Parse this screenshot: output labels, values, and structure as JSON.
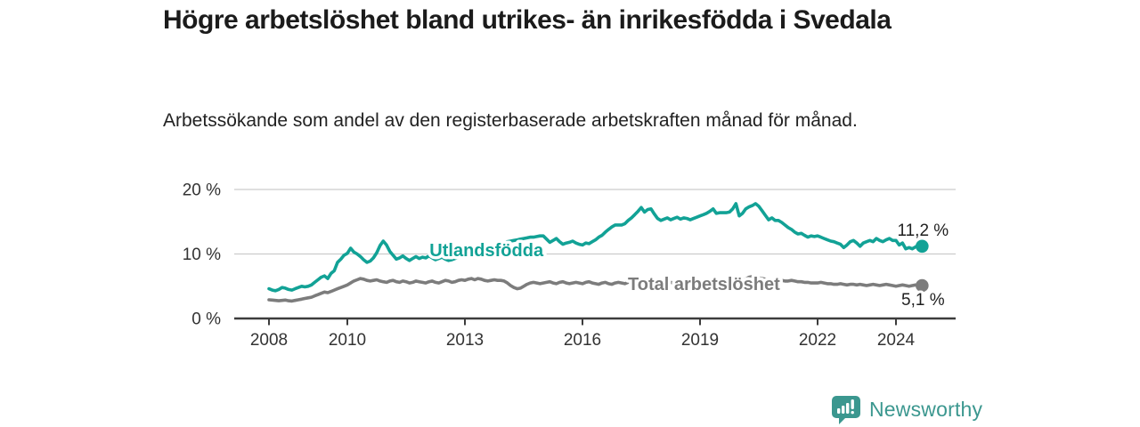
{
  "title": "Högre arbetslöshet bland utrikes- än inrikesfödda i Svedala",
  "subtitle": "Arbetssökande som andel av den registerbaserade arbetskraften månad för månad.",
  "branding": {
    "name": "Newsworthy",
    "icon": "newsworthy-chart-bubble-icon",
    "color": "#3b978f"
  },
  "chart_data": {
    "type": "line",
    "title": "Högre arbetslöshet bland utrikes- än inrikesfödda i Svedala",
    "xlabel": "",
    "ylabel": "Arbetssökande som andel av den registerbaserade arbetskraften",
    "x_unit": "month",
    "x_start": "2008-01",
    "x_end": "2024-09",
    "ylim": [
      0,
      21
    ],
    "grid": "horizontal",
    "legend_position": "inline",
    "y_axis_ticks": [
      {
        "label": "0 %",
        "value": 0
      },
      {
        "label": "10 %",
        "value": 10
      },
      {
        "label": "20 %",
        "value": 20
      }
    ],
    "x_axis_ticks": [
      {
        "label": "2008",
        "year": 2008
      },
      {
        "label": "2010",
        "year": 2010
      },
      {
        "label": "2013",
        "year": 2013
      },
      {
        "label": "2016",
        "year": 2016
      },
      {
        "label": "2019",
        "year": 2019
      },
      {
        "label": "2022",
        "year": 2022
      },
      {
        "label": "2024",
        "year": 2024
      }
    ],
    "series": [
      {
        "id": "total-arbetsloshet",
        "name": "Total arbetslöshet",
        "color": "#7c7c7c",
        "end_label": "5,1 %",
        "end_value": 5.1,
        "label_pos": {
          "year": 2019.1,
          "value": 5.4
        },
        "values": [
          2.9,
          2.85,
          2.8,
          2.75,
          2.8,
          2.85,
          2.75,
          2.7,
          2.8,
          2.9,
          3.0,
          3.1,
          3.2,
          3.3,
          3.5,
          3.7,
          3.9,
          4.1,
          4.0,
          4.2,
          4.4,
          4.6,
          4.8,
          5.0,
          5.2,
          5.5,
          5.8,
          6.0,
          6.2,
          6.1,
          5.9,
          5.8,
          5.9,
          6.0,
          5.8,
          5.7,
          5.6,
          5.8,
          5.9,
          5.7,
          5.6,
          5.8,
          5.7,
          5.5,
          5.6,
          5.8,
          5.7,
          5.6,
          5.5,
          5.7,
          5.8,
          5.6,
          5.5,
          5.7,
          5.9,
          5.8,
          5.6,
          5.7,
          5.9,
          6.0,
          5.9,
          6.1,
          6.2,
          6.0,
          6.2,
          6.1,
          5.9,
          5.8,
          5.9,
          6.0,
          5.9,
          5.9,
          5.8,
          5.5,
          5.1,
          4.8,
          4.6,
          4.7,
          5.0,
          5.3,
          5.5,
          5.6,
          5.5,
          5.4,
          5.5,
          5.6,
          5.7,
          5.5,
          5.4,
          5.6,
          5.7,
          5.5,
          5.4,
          5.5,
          5.6,
          5.5,
          5.4,
          5.6,
          5.7,
          5.5,
          5.4,
          5.3,
          5.5,
          5.6,
          5.4,
          5.3,
          5.5,
          5.6,
          5.5,
          5.4,
          5.6,
          5.7,
          5.5,
          5.4,
          5.5,
          5.6,
          5.5,
          5.4,
          5.5,
          5.6,
          5.5,
          5.6,
          5.7,
          5.6,
          5.5,
          5.6,
          5.7,
          5.6,
          5.5,
          5.6,
          5.7,
          5.6,
          5.6,
          5.7,
          5.8,
          5.7,
          5.6,
          5.7,
          5.8,
          5.7,
          5.6,
          5.7,
          5.8,
          5.8,
          5.8,
          5.9,
          6.1,
          6.4,
          6.5,
          6.4,
          6.3,
          6.2,
          6.1,
          6.0,
          6.0,
          5.9,
          5.9,
          5.9,
          5.8,
          5.8,
          5.9,
          5.8,
          5.7,
          5.7,
          5.6,
          5.6,
          5.5,
          5.5,
          5.5,
          5.6,
          5.5,
          5.4,
          5.4,
          5.3,
          5.3,
          5.4,
          5.3,
          5.2,
          5.3,
          5.3,
          5.2,
          5.3,
          5.2,
          5.1,
          5.2,
          5.3,
          5.2,
          5.1,
          5.2,
          5.3,
          5.2,
          5.1,
          5.0,
          5.1,
          5.2,
          5.1,
          5.0,
          5.1,
          5.2,
          5.2,
          5.1
        ]
      },
      {
        "id": "utlandsfodda",
        "name": "Utlandsfödda",
        "color": "#12a296",
        "end_label": "11,2 %",
        "end_value": 11.2,
        "label_pos": {
          "year": 2013.55,
          "value": 10.6
        },
        "values": [
          4.6,
          4.4,
          4.3,
          4.5,
          4.8,
          4.7,
          4.5,
          4.4,
          4.6,
          4.8,
          5.0,
          4.9,
          5.0,
          5.2,
          5.6,
          6.0,
          6.4,
          6.6,
          6.2,
          7.0,
          7.4,
          8.7,
          9.2,
          9.8,
          10.1,
          10.9,
          10.3,
          10.0,
          9.6,
          9.1,
          8.7,
          8.9,
          9.4,
          10.2,
          11.3,
          12.0,
          11.4,
          10.4,
          9.8,
          9.2,
          9.4,
          9.7,
          9.3,
          9.0,
          9.3,
          9.6,
          9.3,
          9.5,
          9.4,
          9.7,
          9.4,
          9.1,
          9.3,
          9.5,
          9.2,
          9.0,
          9.1,
          9.3,
          9.5,
          9.7,
          9.9,
          10.1,
          10.3,
          10.4,
          10.6,
          10.7,
          10.9,
          11.0,
          11.2,
          11.3,
          11.5,
          11.6,
          11.7,
          11.9,
          12.0,
          12.1,
          12.2,
          12.3,
          12.4,
          12.5,
          12.6,
          12.6,
          12.7,
          12.8,
          12.8,
          12.3,
          11.8,
          12.1,
          12.4,
          11.9,
          11.5,
          11.7,
          11.8,
          12.0,
          11.7,
          11.5,
          11.4,
          11.7,
          11.6,
          11.9,
          12.2,
          12.6,
          12.9,
          13.4,
          13.8,
          14.2,
          14.5,
          14.5,
          14.5,
          14.7,
          15.2,
          15.6,
          16.1,
          16.6,
          17.2,
          16.5,
          16.9,
          17.0,
          16.2,
          15.5,
          15.2,
          15.4,
          15.6,
          15.3,
          15.5,
          15.7,
          15.4,
          15.6,
          15.5,
          15.3,
          15.5,
          15.7,
          15.9,
          16.1,
          16.3,
          16.6,
          17.0,
          16.3,
          16.4,
          16.4,
          16.4,
          16.5,
          17.0,
          17.8,
          15.9,
          16.3,
          17.0,
          17.3,
          17.5,
          17.8,
          17.4,
          16.7,
          16.0,
          15.3,
          15.6,
          15.2,
          15.2,
          14.9,
          14.5,
          14.1,
          13.8,
          13.4,
          13.1,
          13.2,
          12.9,
          12.6,
          12.8,
          12.7,
          12.8,
          12.6,
          12.4,
          12.2,
          12.0,
          11.9,
          11.7,
          11.5,
          11.0,
          11.4,
          11.9,
          12.1,
          11.7,
          11.2,
          11.7,
          11.9,
          12.1,
          11.9,
          12.4,
          12.1,
          11.9,
          12.2,
          12.4,
          12.1,
          12.1,
          11.4,
          11.7,
          10.8,
          11.0,
          10.8,
          11.1,
          11.4,
          11.2
        ]
      }
    ]
  }
}
